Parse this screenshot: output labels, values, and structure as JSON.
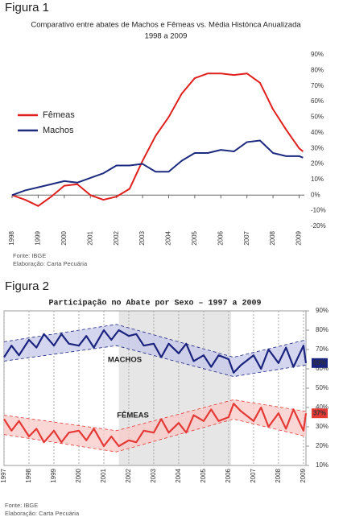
{
  "chart_data": [
    {
      "type": "line",
      "figure_label": "Figura 1",
      "title": "Comparativo entre abates de Machos e Fêmeas vs. Média Histónca Anualizada",
      "subtitle": "1998 a 2009",
      "x": [
        1998,
        1998.5,
        1999,
        1999.5,
        2000,
        2000.5,
        2001,
        2001.5,
        2002,
        2002.5,
        2003,
        2003.5,
        2004,
        2004.5,
        2005,
        2005.5,
        2006,
        2006.5,
        2007,
        2007.5,
        2008,
        2008.5,
        2009,
        2009.15
      ],
      "series": [
        {
          "name": "Fêmeas",
          "color": "#e0201c",
          "values": [
            0,
            -3,
            -7,
            -1,
            6,
            7,
            0,
            -3,
            -1,
            4,
            22,
            38,
            50,
            65,
            75,
            78,
            78,
            77,
            78,
            72,
            55,
            42,
            30,
            28
          ]
        },
        {
          "name": "Machos",
          "color": "#1c2a80",
          "values": [
            0,
            3,
            5,
            7,
            9,
            8,
            11,
            14,
            19,
            19,
            20,
            15,
            15,
            22,
            27,
            27,
            29,
            28,
            34,
            35,
            27,
            25,
            25,
            24
          ]
        }
      ],
      "xlim": [
        1998,
        2009.2
      ],
      "xticks": [
        1998,
        1999,
        2000,
        2001,
        2002,
        2003,
        2004,
        2005,
        2006,
        2007,
        2008,
        2009
      ],
      "ylim": [
        -20,
        90
      ],
      "yticks": [
        {
          "value": -20,
          "label": "-20%"
        },
        {
          "value": -10,
          "label": "-10%"
        },
        {
          "value": 0,
          "label": "0%"
        },
        {
          "value": 10,
          "label": "10%"
        },
        {
          "value": 20,
          "label": "20%"
        },
        {
          "value": 30,
          "label": "30%"
        },
        {
          "value": 40,
          "label": "40%"
        },
        {
          "value": 50,
          "label": "50%"
        },
        {
          "value": 60,
          "label": "60%"
        },
        {
          "value": 70,
          "label": "70%"
        },
        {
          "value": 80,
          "label": "80%"
        },
        {
          "value": 90,
          "label": "90%"
        }
      ],
      "legend": "upper left",
      "notes": [
        "Fonte: IBGE",
        "Elaboração: Carta Pecuária"
      ]
    },
    {
      "type": "line",
      "figure_label": "Figura 2",
      "title": "Participação no Abate por Sexo – 1997 a 2009",
      "x": [
        1997,
        1997.3,
        1997.6,
        1998,
        1998.3,
        1998.6,
        1999,
        1999.3,
        1999.6,
        2000,
        2000.3,
        2000.6,
        2001,
        2001.3,
        2001.6,
        2002,
        2002.3,
        2002.6,
        2003,
        2003.3,
        2003.6,
        2004,
        2004.3,
        2004.6,
        2005,
        2005.3,
        2005.6,
        2006,
        2006.2,
        2006.5,
        2007,
        2007.3,
        2007.6,
        2008,
        2008.3,
        2008.6,
        2009,
        2009.1
      ],
      "series": [
        {
          "name": "MACHOS",
          "color": "#1a237e",
          "values": [
            66,
            72,
            67,
            75,
            71,
            78,
            72,
            78,
            73,
            72,
            77,
            71,
            80,
            75,
            80,
            77,
            78,
            72,
            73,
            66,
            73,
            68,
            73,
            64,
            67,
            61,
            67,
            65,
            58,
            62,
            67,
            60,
            70,
            63,
            71,
            61,
            72,
            63
          ],
          "value_labels": [
            null,
            null,
            null,
            null,
            null,
            null,
            null,
            null,
            null,
            null,
            null,
            null,
            null,
            null,
            null,
            null,
            null,
            null,
            null,
            null,
            null,
            null,
            null,
            null,
            null,
            null,
            null,
            null,
            null,
            null,
            null,
            null,
            null,
            null,
            null,
            null,
            null,
            "63%"
          ],
          "band": {
            "x": [
              1997,
              2001.5,
              2006.2,
              2009.1
            ],
            "upper": [
              74,
              83,
              66,
              75
            ],
            "lower": [
              64,
              72,
              56,
              62
            ],
            "color": "#c5c8ea"
          }
        },
        {
          "name": "FÊMEAS",
          "color": "#e53935",
          "values": [
            34,
            28,
            33,
            25,
            29,
            22,
            28,
            22,
            27,
            28,
            23,
            29,
            20,
            25,
            20,
            23,
            22,
            28,
            27,
            34,
            27,
            32,
            27,
            36,
            33,
            39,
            33,
            35,
            42,
            38,
            33,
            40,
            30,
            37,
            29,
            39,
            28,
            37
          ],
          "value_labels": [
            null,
            null,
            null,
            null,
            null,
            null,
            null,
            null,
            null,
            null,
            null,
            null,
            null,
            null,
            null,
            null,
            null,
            null,
            null,
            null,
            null,
            null,
            null,
            null,
            null,
            null,
            null,
            null,
            null,
            null,
            null,
            null,
            null,
            null,
            null,
            null,
            null,
            "37%"
          ],
          "band": {
            "x": [
              1997,
              2001.5,
              2006.2,
              2009.1
            ],
            "upper": [
              36,
              28,
              44,
              38
            ],
            "lower": [
              26,
              17,
              34,
              25
            ],
            "color": "#f8c8c6"
          }
        }
      ],
      "highlight_x": [
        2001.6,
        2006.1
      ],
      "xlim": [
        1997,
        2009.1
      ],
      "xticks": [
        1997,
        1998,
        1999,
        2000,
        2001,
        2002,
        2003,
        2004,
        2005,
        2006,
        2007,
        2008,
        2009
      ],
      "ylim": [
        10,
        90
      ],
      "yticks": [
        {
          "value": 10,
          "label": "10%"
        },
        {
          "value": 20,
          "label": "20%"
        },
        {
          "value": 30,
          "label": "30%"
        },
        {
          "value": 40,
          "label": "40%"
        },
        {
          "value": 50,
          "label": "50%"
        },
        {
          "value": 60,
          "label": "60%"
        },
        {
          "value": 70,
          "label": "70%"
        },
        {
          "value": 80,
          "label": "80%"
        },
        {
          "value": 90,
          "label": "90%"
        }
      ],
      "grid": true,
      "notes": [
        "Fonte: IBGE",
        "Elaboração: Carta Pecuária"
      ]
    }
  ]
}
